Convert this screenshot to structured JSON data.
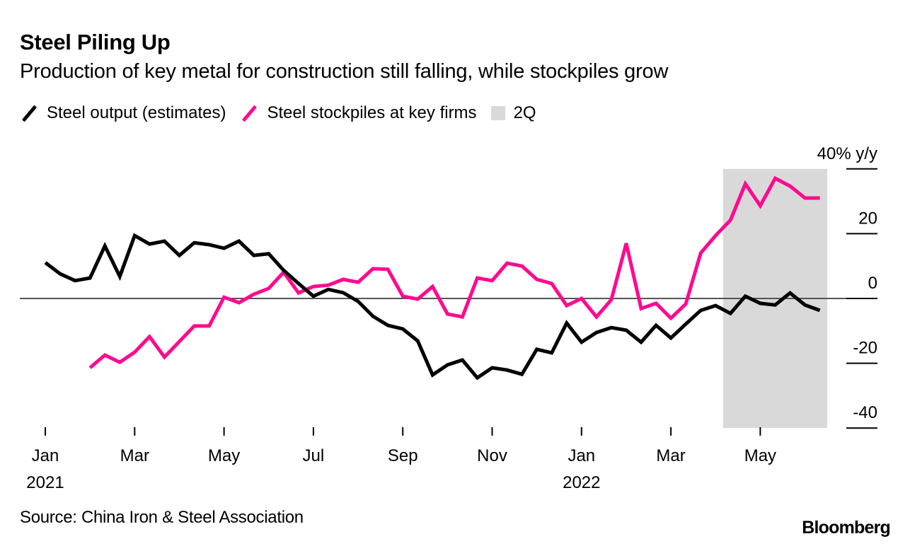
{
  "header": {
    "title": "Steel Piling Up",
    "subtitle": "Production of key metal for construction still falling, while stockpiles grow"
  },
  "legend": [
    {
      "label": "Steel output (estimates)",
      "type": "line",
      "color": "#000000"
    },
    {
      "label": "Steel stockpiles at key firms",
      "type": "line",
      "color": "#ff0a8f"
    },
    {
      "label": "2Q",
      "type": "box",
      "color": "#d9d9d9"
    }
  ],
  "footer": {
    "source": "Source: China Iron & Steel Association",
    "brand": "Bloomberg"
  },
  "chart_data": {
    "type": "line",
    "title": "Steel Piling Up",
    "subtitle": "Production of key metal for construction still falling, while stockpiles grow",
    "xlabel": "",
    "ylabel": "40% y/y",
    "y_unit_label": "40% y/y",
    "ylim": [
      -40,
      40
    ],
    "y_ticks": [
      40,
      20,
      0,
      -20,
      -40
    ],
    "y_tick_labels": [
      "40% y/y",
      "20",
      "0",
      "-20",
      "-40"
    ],
    "y_axis_side": "right",
    "grid": false,
    "zero_line": true,
    "x_start": "2021-01",
    "x_step": "half-month",
    "x_ticks": [
      {
        "index": 0,
        "label": "Jan",
        "sublabel": "2021"
      },
      {
        "index": 6,
        "label": "Mar",
        "sublabel": ""
      },
      {
        "index": 12,
        "label": "May",
        "sublabel": ""
      },
      {
        "index": 18,
        "label": "Jul",
        "sublabel": ""
      },
      {
        "index": 24,
        "label": "Sep",
        "sublabel": ""
      },
      {
        "index": 30,
        "label": "Nov",
        "sublabel": ""
      },
      {
        "index": 36,
        "label": "Jan",
        "sublabel": "2022"
      },
      {
        "index": 42,
        "label": "Mar",
        "sublabel": ""
      },
      {
        "index": 48,
        "label": "May",
        "sublabel": ""
      }
    ],
    "shaded_region": {
      "label": "2Q",
      "start_index": 45.5,
      "end_index": 52.5,
      "color": "#d9d9d9"
    },
    "series": [
      {
        "name": "Steel output (estimates)",
        "color": "#000000",
        "start_index": 0,
        "values": [
          11.1,
          7.6,
          5.5,
          6.3,
          16.2,
          6.8,
          19.4,
          16.8,
          17.7,
          13.3,
          17.2,
          16.6,
          15.5,
          17.7,
          13.3,
          13.8,
          8.7,
          4.6,
          0.7,
          2.8,
          1.8,
          -0.9,
          -5.5,
          -8.3,
          -9.4,
          -13.1,
          -23.6,
          -20.5,
          -19.0,
          -24.5,
          -21.4,
          -22.1,
          -23.4,
          -15.7,
          -16.8,
          -7.6,
          -13.5,
          -10.5,
          -9.0,
          -9.8,
          -13.5,
          -8.3,
          -12.2,
          -7.9,
          -3.7,
          -2.2,
          -4.6,
          0.7,
          -1.5,
          -2.0,
          1.7,
          -2.0,
          -3.7
        ]
      },
      {
        "name": "Steel stockpiles at key firms",
        "color": "#ff0a8f",
        "start_index": 3,
        "values": [
          -21.4,
          -17.5,
          -19.7,
          -16.6,
          -11.8,
          -18.1,
          -13.3,
          -8.5,
          -8.5,
          0.4,
          -1.3,
          1.3,
          3.1,
          8.1,
          1.7,
          3.7,
          4.1,
          5.9,
          5.0,
          9.2,
          9.0,
          0.7,
          -0.2,
          3.7,
          -4.8,
          -5.7,
          6.3,
          5.5,
          10.9,
          10.0,
          5.9,
          4.6,
          -2.2,
          0.0,
          -5.7,
          -0.4,
          17.0,
          -3.1,
          -1.5,
          -6.1,
          -1.7,
          14.0,
          19.4,
          24.2,
          35.4,
          28.6,
          37.1,
          34.7,
          31.0,
          31.0
        ]
      }
    ]
  }
}
